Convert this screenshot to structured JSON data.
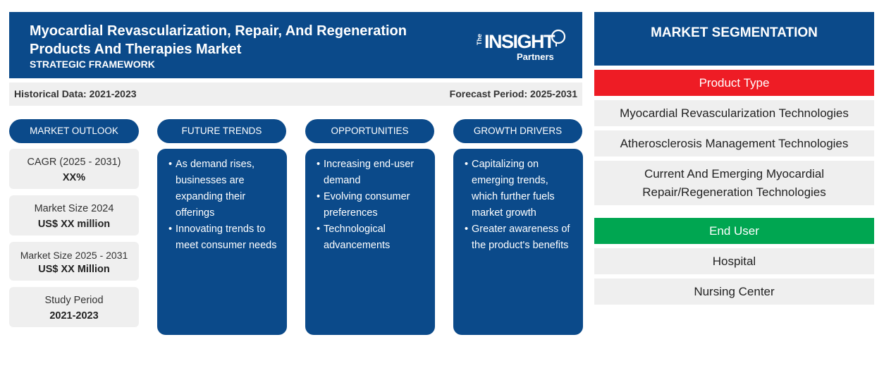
{
  "header": {
    "title": "Myocardial Revascularization, Repair, And Regeneration Products And Therapies Market",
    "subtitle": "STRATEGIC FRAMEWORK",
    "logo": {
      "the": "The",
      "insight": "INSIGHT",
      "partners": "Partners"
    }
  },
  "periods": {
    "historical": "Historical Data: 2021-2023",
    "forecast": "Forecast Period: 2025-2031"
  },
  "columns": {
    "outlook": "MARKET OUTLOOK",
    "trends": "FUTURE TRENDS",
    "opportunities": "OPPORTUNITIES",
    "drivers": "GROWTH DRIVERS"
  },
  "outlook": [
    {
      "label": "CAGR (2025 - 2031)",
      "value": "XX%"
    },
    {
      "label": "Market Size 2024",
      "value": "US$ XX million"
    },
    {
      "label": "Market Size 2025 - 2031",
      "value": "US$ XX Million"
    },
    {
      "label": "Study Period",
      "value": "2021-2023"
    }
  ],
  "trends": [
    "As demand rises, businesses are expanding their offerings",
    "Innovating trends to meet consumer needs"
  ],
  "opportunities": [
    "Increasing end-user demand",
    "Evolving consumer preferences",
    "Technological advancements"
  ],
  "drivers": [
    "Capitalizing on emerging trends, which further fuels market growth",
    "Greater awareness of the product's benefits"
  ],
  "segmentation": {
    "title": "MARKET SEGMENTATION",
    "product_type": {
      "label": "Product Type",
      "color": "#ee1c25",
      "items": [
        "Myocardial Revascularization Technologies",
        "Atherosclerosis Management Technologies",
        "Current And Emerging Myocardial Repair/Regeneration Technologies"
      ]
    },
    "end_user": {
      "label": "End User",
      "color": "#00a651",
      "items": [
        "Hospital",
        "Nursing Center"
      ]
    }
  },
  "colors": {
    "primary": "#0b4a8a",
    "light_gray": "#efefef"
  }
}
